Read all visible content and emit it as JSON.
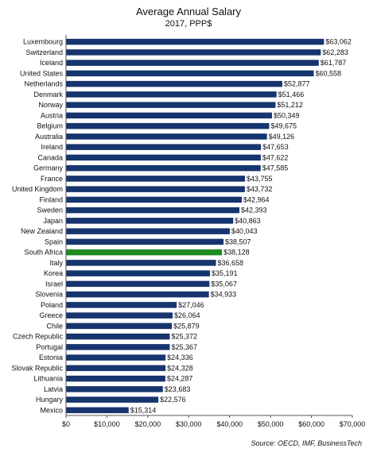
{
  "chart_data": {
    "type": "bar",
    "orientation": "horizontal",
    "title": "Average Annual Salary",
    "subtitle": "2017, PPP$",
    "source": "Source: OECD, IMF, BusinessTech",
    "categories": [
      "Luxembourg",
      "Switzerland",
      "Iceland",
      "United States",
      "Netherlands",
      "Denmark",
      "Norway",
      "Austria",
      "Belgium",
      "Australia",
      "Ireland",
      "Canada",
      "Germany",
      "France",
      "United Kingdom",
      "Finland",
      "Sweden",
      "Japan",
      "New Zealand",
      "Spain",
      "South Africa",
      "Italy",
      "Korea",
      "Israel",
      "Slovenia",
      "Poland",
      "Greece",
      "Chile",
      "Czech Republic",
      "Portugal",
      "Estonia",
      "Slovak Republic",
      "Lithuania",
      "Latvia",
      "Hungary",
      "Mexico"
    ],
    "values": [
      63062,
      62283,
      61787,
      60558,
      52877,
      51466,
      51212,
      50349,
      49675,
      49126,
      47653,
      47622,
      47585,
      43755,
      43732,
      42964,
      42393,
      40863,
      40043,
      38507,
      38128,
      36658,
      35191,
      35067,
      34933,
      27046,
      26064,
      25879,
      25372,
      25367,
      24336,
      24328,
      24287,
      23683,
      22576,
      15314
    ],
    "value_labels": [
      "$63,062",
      "$62,283",
      "$61,787",
      "$60,558",
      "$52,877",
      "$51,466",
      "$51,212",
      "$50,349",
      "$49,675",
      "$49,126",
      "$47,653",
      "$47,622",
      "$47,585",
      "$43,755",
      "$43,732",
      "$42,964",
      "$42,393",
      "$40,863",
      "$40,043",
      "$38,507",
      "$38,128",
      "$36,658",
      "$35,191",
      "$35,067",
      "$34,933",
      "$27,046",
      "$26,064",
      "$25,879",
      "$25,372",
      "$25,367",
      "$24,336",
      "$24,328",
      "$24,287",
      "$23,683",
      "$22,576",
      "$15,314"
    ],
    "highlight_category": "South Africa",
    "colors": {
      "bar": "#16356e",
      "highlight": "#1f8a1f",
      "axis": "#555555",
      "grid": "#cccccc"
    },
    "xlim": [
      0,
      70000
    ],
    "xticks": [
      0,
      10000,
      20000,
      30000,
      40000,
      50000,
      60000,
      70000
    ],
    "xtick_labels": [
      "$0",
      "$10,000",
      "$20,000",
      "$30,000",
      "$40,000",
      "$50,000",
      "$60,000",
      "$70,000"
    ],
    "xlabel": "",
    "ylabel": "",
    "grid": false,
    "legend": "none"
  }
}
